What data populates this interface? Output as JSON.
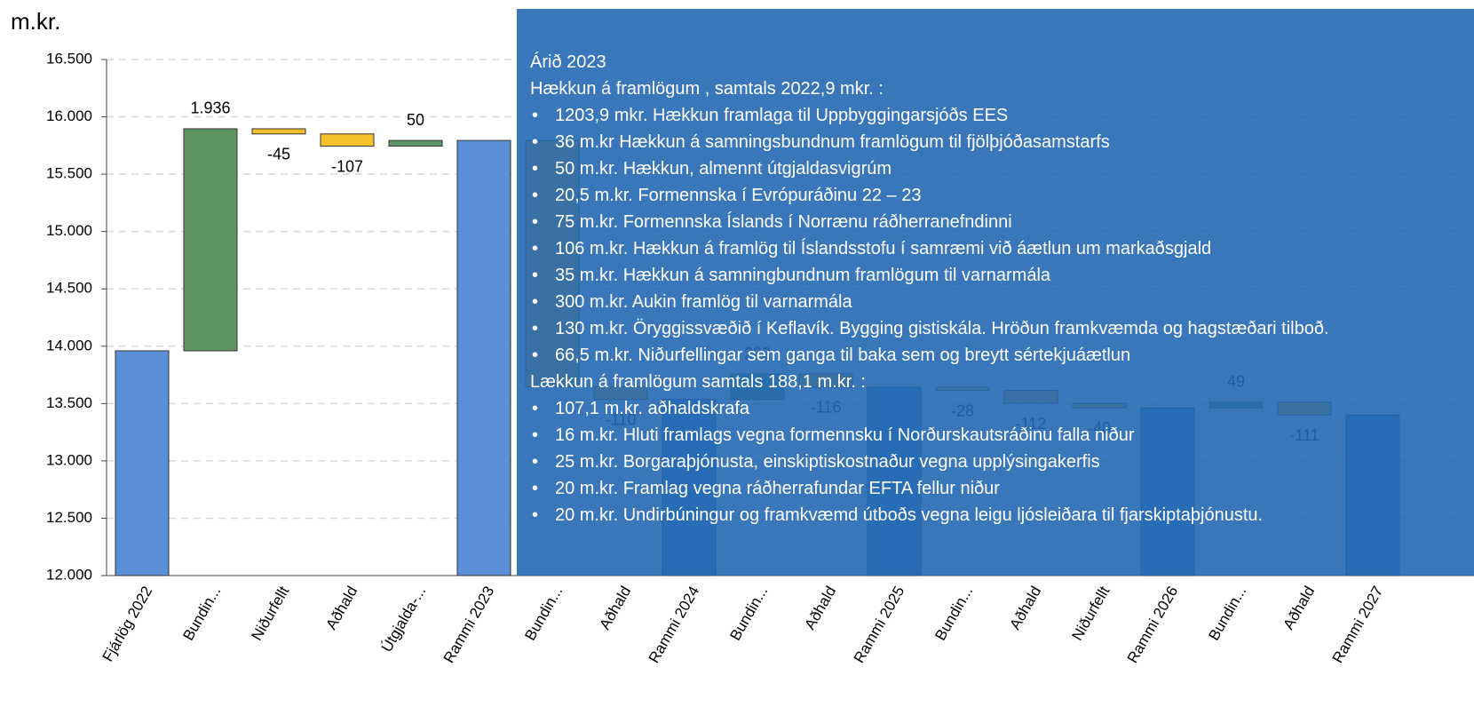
{
  "chart_data": {
    "type": "waterfall",
    "y_label": "m.kr.",
    "categories": [
      "Fjárlög 2022",
      "Bundin...",
      "Niðurfellt",
      "Aðhald",
      "Útgjalda-...",
      "Rammi 2023",
      "Bundin...",
      "Aðhald",
      "Rammi 2024",
      "Bundin...",
      "Aðhald",
      "Rammi 2025",
      "Bundin...",
      "Aðhald",
      "Niðurfellt",
      "Rammi 2026",
      "Bundin...",
      "Aðhald",
      "Rammi 2027"
    ],
    "measure": [
      "total",
      "relative",
      "relative",
      "relative",
      "relative",
      "total",
      "relative",
      "relative",
      "total",
      "relative",
      "relative",
      "total",
      "relative",
      "relative",
      "relative",
      "total",
      "relative",
      "relative",
      "total"
    ],
    "values": [
      13960,
      1936,
      -45,
      -107,
      50,
      15794,
      -2148,
      -110,
      13536,
      222,
      -116,
      13642,
      -28,
      -112,
      -40,
      13462,
      49,
      -111,
      13400
    ],
    "value_labels": [
      null,
      "1.936",
      "-45",
      "-107",
      "50",
      null,
      null,
      "-110",
      null,
      "222",
      "-116",
      null,
      "-28",
      "-112",
      "-40",
      null,
      "49",
      "-111",
      null
    ],
    "colors": {
      "total": "#5b8fd8",
      "increase": "#5e9463",
      "decrease": "#f7c12d"
    },
    "ylim": [
      12000,
      16500
    ],
    "yticks": [
      {
        "value": 12000,
        "label": "12.000"
      },
      {
        "value": 12500,
        "label": "12.500"
      },
      {
        "value": 13000,
        "label": "13.000"
      },
      {
        "value": 13500,
        "label": "13.500"
      },
      {
        "value": 14000,
        "label": "14.000"
      },
      {
        "value": 14500,
        "label": "14.500"
      },
      {
        "value": 15000,
        "label": "15.000"
      },
      {
        "value": 15500,
        "label": "15.500"
      },
      {
        "value": 16000,
        "label": "16.000"
      },
      {
        "value": 16500,
        "label": "16.500"
      }
    ],
    "grid": true
  },
  "overlay": {
    "title": "Árið 2023",
    "increase_heading": "Hækkun á framlögum , samtals 2022,9 mkr. :",
    "increase_items": [
      "1203,9 mkr. Hækkun framlaga til Uppbyggingarsjóðs EES",
      "36 m.kr Hækkun á samningsbundnum framlögum til fjölþjóðasamstarfs",
      "50 m.kr. Hækkun, almennt útgjaldasvigrúm",
      "20,5 m.kr. Formennska í Evrópuráðinu 22 – 23",
      "75 m.kr. Formennska Íslands í Norrænu ráðherranefndinni",
      "106 m.kr. Hækkun á framlög til Íslandsstofu í samræmi við áætlun um markaðsgjald",
      "35 m.kr. Hækkun á samningbundnum framlögum til varnarmála",
      "300 m.kr. Aukin framlög til varnarmála",
      "130 m.kr. Öryggissvæðið í Keflavík. Bygging gistiskála. Hröðun framkvæmda og hagstæðari tilboð.",
      "66,5 m.kr. Niðurfellingar sem ganga til baka sem og breytt sértekjuáætlun"
    ],
    "decrease_heading": "Lækkun á framlögum samtals 188,1 m.kr. :",
    "decrease_items": [
      "107,1 m.kr. aðhaldskrafa",
      "16 m.kr. Hluti framlags vegna formennsku í Norðurskautsráðinu falla niður",
      "25 m.kr. Borgaraþjónusta, einskiptiskostnaður vegna upplýsingakerfis",
      "20 m.kr. Framlag vegna ráðherrafundar EFTA fellur niður",
      "20 m.kr. Undirbúningur og framkvæmd útboðs vegna leigu ljósleiðara til fjarskiptaþjónustu."
    ]
  }
}
